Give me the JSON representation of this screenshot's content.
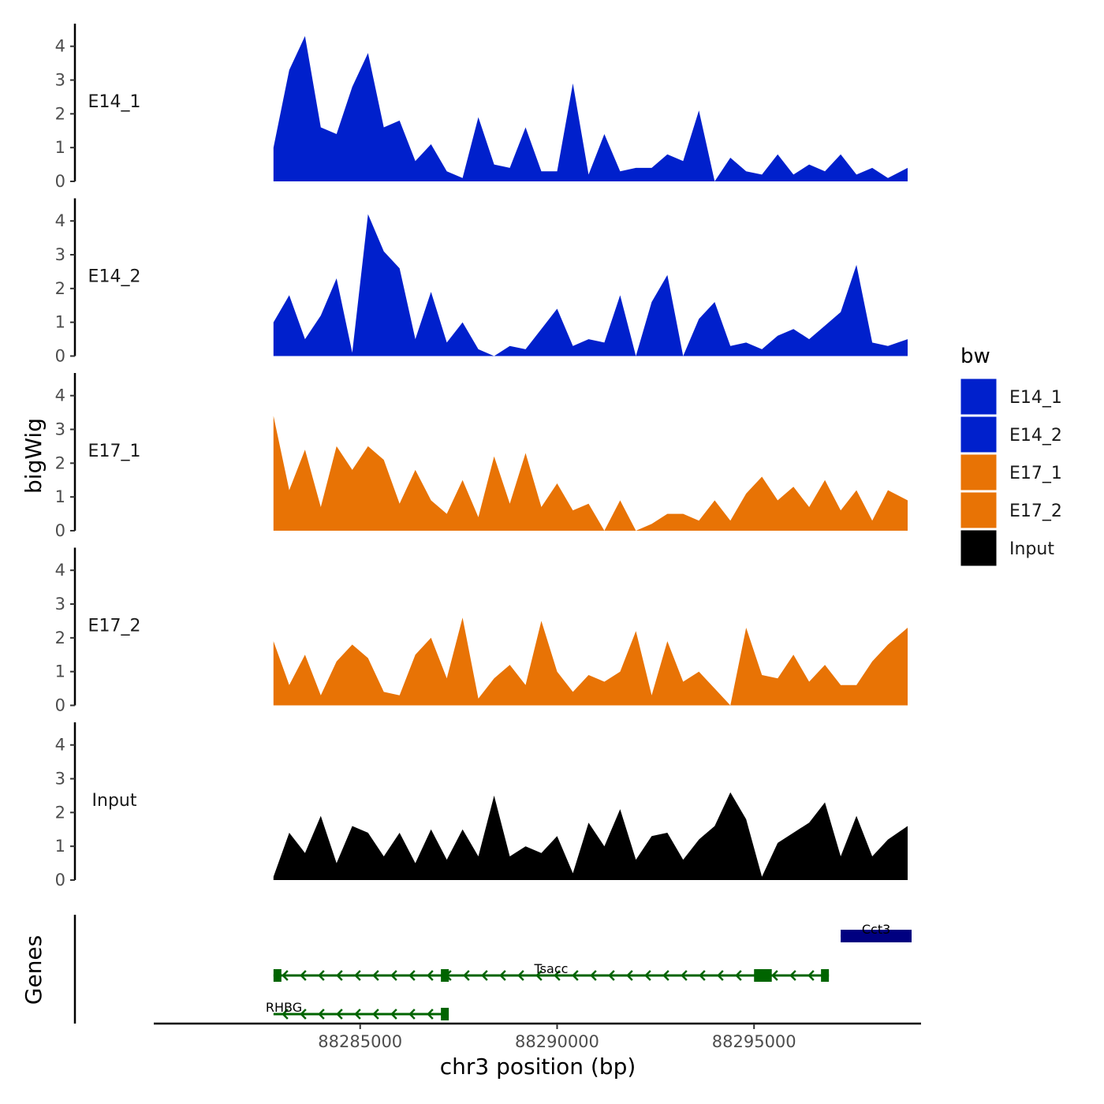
{
  "chart_data": {
    "type": "area",
    "y_axis_title": "bigWig",
    "x_axis_title": "chr3 position (bp)",
    "genes_axis_title": "Genes",
    "xlim": [
      88279760,
      88299240
    ],
    "ylim": [
      0,
      4.6
    ],
    "y_ticks": [
      0,
      1,
      2,
      3,
      4
    ],
    "y_tick_labels": [
      "0",
      "1",
      "2",
      "3",
      "4"
    ],
    "x_ticks": [
      88285000,
      88290000,
      88295000
    ],
    "x_tick_labels": [
      "88285000",
      "88290000",
      "88295000"
    ],
    "legend": {
      "title": "bw",
      "entries": [
        {
          "label": "E14_1",
          "color": "#0020cc"
        },
        {
          "label": "E14_2",
          "color": "#0020cc"
        },
        {
          "label": "E17_1",
          "color": "#e87305"
        },
        {
          "label": "E17_2",
          "color": "#e87305"
        },
        {
          "label": "Input",
          "color": "#000000"
        }
      ]
    },
    "series": [
      {
        "name": "E14_1",
        "color": "#0020cc",
        "x": [
          88282800,
          88283200,
          88283600,
          88284000,
          88284400,
          88284800,
          88285200,
          88285600,
          88286000,
          88286400,
          88286800,
          88287200,
          88287600,
          88288000,
          88288400,
          88288800,
          88289200,
          88289600,
          88290000,
          88290400,
          88290800,
          88291200,
          88291600,
          88292000,
          88292400,
          88292800,
          88293200,
          88293600,
          88294000,
          88294400,
          88294800,
          88295200,
          88295600,
          88296000,
          88296400,
          88296800,
          88297200,
          88297600,
          88298000,
          88298400,
          88298900
        ],
        "values": [
          1.0,
          3.3,
          4.3,
          1.6,
          1.4,
          2.8,
          3.8,
          1.6,
          1.8,
          0.6,
          1.1,
          0.3,
          0.1,
          1.9,
          0.5,
          0.4,
          1.6,
          0.3,
          0.3,
          2.9,
          0.2,
          1.4,
          0.3,
          0.4,
          0.4,
          0.8,
          0.6,
          2.1,
          0,
          0.7,
          0.3,
          0.2,
          0.8,
          0.2,
          0.5,
          0.3,
          0.8,
          0.2,
          0.4,
          0.1,
          0.4
        ]
      },
      {
        "name": "E14_2",
        "color": "#0020cc",
        "x": [
          88282800,
          88283200,
          88283600,
          88284000,
          88284400,
          88284800,
          88285200,
          88285600,
          88286000,
          88286400,
          88286800,
          88287200,
          88287600,
          88288000,
          88288400,
          88288800,
          88289200,
          88289600,
          88290000,
          88290400,
          88290800,
          88291200,
          88291600,
          88292000,
          88292400,
          88292800,
          88293200,
          88293600,
          88294000,
          88294400,
          88294800,
          88295200,
          88295600,
          88296000,
          88296400,
          88296800,
          88297200,
          88297600,
          88298000,
          88298400,
          88298900
        ],
        "values": [
          1.0,
          1.8,
          0.5,
          1.2,
          2.3,
          0.1,
          4.2,
          3.1,
          2.6,
          0.5,
          1.9,
          0.4,
          1.0,
          0.2,
          0,
          0.3,
          0.2,
          0.8,
          1.4,
          0.3,
          0.5,
          0.4,
          1.8,
          0,
          1.6,
          2.4,
          0,
          1.1,
          1.6,
          0.3,
          0.4,
          0.2,
          0.6,
          0.8,
          0.5,
          0.9,
          1.3,
          2.7,
          0.4,
          0.3,
          0.5
        ]
      },
      {
        "name": "E17_1",
        "color": "#e87305",
        "x": [
          88282800,
          88283200,
          88283600,
          88284000,
          88284400,
          88284800,
          88285200,
          88285600,
          88286000,
          88286400,
          88286800,
          88287200,
          88287600,
          88288000,
          88288400,
          88288800,
          88289200,
          88289600,
          88290000,
          88290400,
          88290800,
          88291200,
          88291600,
          88292000,
          88292400,
          88292800,
          88293200,
          88293600,
          88294000,
          88294400,
          88294800,
          88295200,
          88295600,
          88296000,
          88296400,
          88296800,
          88297200,
          88297600,
          88298000,
          88298400,
          88298900
        ],
        "values": [
          3.4,
          1.2,
          2.4,
          0.7,
          2.5,
          1.8,
          2.5,
          2.1,
          0.8,
          1.8,
          0.9,
          0.5,
          1.5,
          0.4,
          2.2,
          0.8,
          2.3,
          0.7,
          1.4,
          0.6,
          0.8,
          0,
          0.9,
          0,
          0.2,
          0.5,
          0.5,
          0.3,
          0.9,
          0.3,
          1.1,
          1.6,
          0.9,
          1.3,
          0.7,
          1.5,
          0.6,
          1.2,
          0.3,
          1.2,
          0.9
        ]
      },
      {
        "name": "E17_2",
        "color": "#e87305",
        "x": [
          88282800,
          88283200,
          88283600,
          88284000,
          88284400,
          88284800,
          88285200,
          88285600,
          88286000,
          88286400,
          88286800,
          88287200,
          88287600,
          88288000,
          88288400,
          88288800,
          88289200,
          88289600,
          88290000,
          88290400,
          88290800,
          88291200,
          88291600,
          88292000,
          88292400,
          88292800,
          88293200,
          88293600,
          88294000,
          88294400,
          88294800,
          88295200,
          88295600,
          88296000,
          88296400,
          88296800,
          88297200,
          88297600,
          88298000,
          88298400,
          88298900
        ],
        "values": [
          1.9,
          0.6,
          1.5,
          0.3,
          1.3,
          1.8,
          1.4,
          0.4,
          0.3,
          1.5,
          2.0,
          0.8,
          2.6,
          0.2,
          0.8,
          1.2,
          0.6,
          2.5,
          1.0,
          0.4,
          0.9,
          0.7,
          1.0,
          2.2,
          0.3,
          1.9,
          0.7,
          1.0,
          0.5,
          0,
          2.3,
          0.9,
          0.8,
          1.5,
          0.7,
          1.2,
          0.6,
          0.6,
          1.3,
          1.8,
          2.3
        ]
      },
      {
        "name": "Input",
        "color": "#000000",
        "x": [
          88282800,
          88283200,
          88283600,
          88284000,
          88284400,
          88284800,
          88285200,
          88285600,
          88286000,
          88286400,
          88286800,
          88287200,
          88287600,
          88288000,
          88288400,
          88288800,
          88289200,
          88289600,
          88290000,
          88290400,
          88290800,
          88291200,
          88291600,
          88292000,
          88292400,
          88292800,
          88293200,
          88293600,
          88294000,
          88294400,
          88294800,
          88295200,
          88295600,
          88296000,
          88296400,
          88296800,
          88297200,
          88297600,
          88298000,
          88298400,
          88298900
        ],
        "values": [
          0.1,
          1.4,
          0.8,
          1.9,
          0.5,
          1.6,
          1.4,
          0.7,
          1.4,
          0.5,
          1.5,
          0.6,
          1.5,
          0.7,
          2.5,
          0.7,
          1.0,
          0.8,
          1.3,
          0.2,
          1.7,
          1.0,
          2.1,
          0.6,
          1.3,
          1.4,
          0.6,
          1.2,
          1.6,
          2.6,
          1.8,
          0.1,
          1.1,
          1.4,
          1.7,
          2.3,
          0.7,
          1.9,
          0.7,
          1.2,
          1.6
        ]
      }
    ],
    "genes": [
      {
        "name": "Cct3",
        "start": 88297200,
        "end": 88299000,
        "strand": "+",
        "color": "#000080",
        "exons": [
          [
            88297200,
            88299000
          ]
        ]
      },
      {
        "name": "Tsacc",
        "start": 88282800,
        "end": 88296900,
        "strand": "-",
        "color": "#006400",
        "exons": [
          [
            88282800,
            88282950
          ],
          [
            88287050,
            88287150
          ],
          [
            88295000,
            88295450
          ],
          [
            88296700,
            88296900
          ]
        ]
      },
      {
        "name": "RHBG",
        "start": 88282800,
        "end": 88287150,
        "strand": "-",
        "color": "#006400",
        "exons": [
          [
            88287050,
            88287150
          ]
        ]
      }
    ]
  }
}
